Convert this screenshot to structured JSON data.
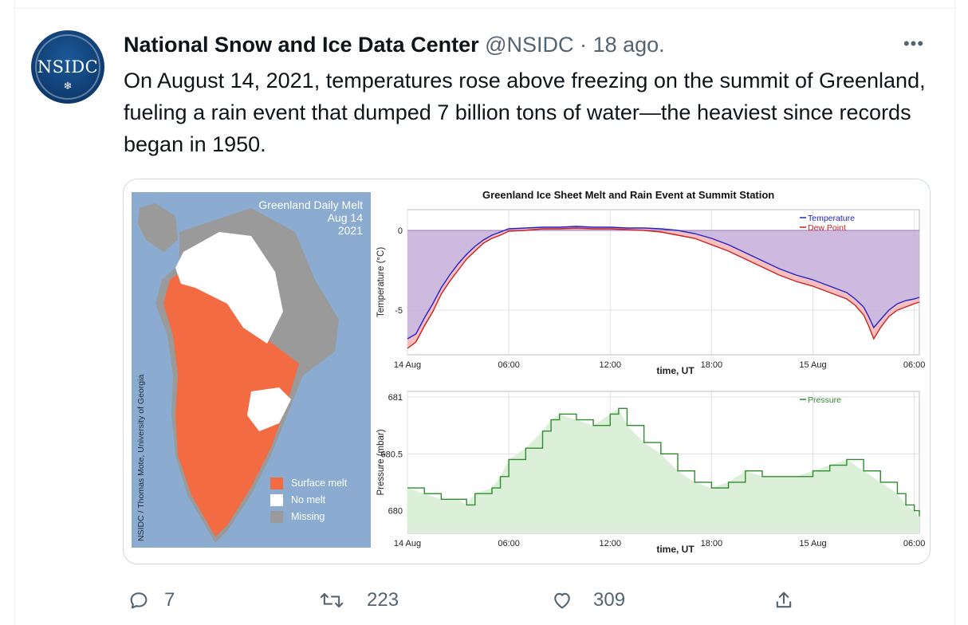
{
  "tweet": {
    "author_name": "National Snow and Ice Data Center",
    "handle": "@NSIDC",
    "separator": "·",
    "date": "18 ago.",
    "avatar_text": "NSIDC",
    "avatar_icon": "snowflake-icon",
    "more_icon": "more-horizontal-icon",
    "text": "On August 14, 2021, temperatures rose above freezing on the summit of Greenland, fueling a rain event that dumped 7 billion tons of water—the heaviest since records began in 1950."
  },
  "map": {
    "title_lines": [
      "Greenland Daily Melt",
      "Aug 14",
      "2021"
    ],
    "credit": "NSIDC / Thomas Mote, University of Georgia",
    "legend": [
      {
        "label": "Surface melt",
        "color": "#f26b43"
      },
      {
        "label": "No melt",
        "color": "#ffffff"
      },
      {
        "label": "Missing",
        "color": "#9a9a9a"
      }
    ],
    "ocean_color": "#8bacd0"
  },
  "actions": {
    "reply": {
      "icon": "reply-icon",
      "count": "7"
    },
    "retweet": {
      "icon": "retweet-icon",
      "count": "223"
    },
    "like": {
      "icon": "heart-icon",
      "count": "309"
    },
    "share": {
      "icon": "share-icon"
    }
  },
  "chart_data": [
    {
      "type": "line",
      "title": "Greenland Ice Sheet Melt and Rain Event at Summit Station",
      "xlabel": "time, UT",
      "ylabel": "Temperature (°C)",
      "x_ticks": [
        "14 Aug",
        "06:00",
        "12:00",
        "18:00",
        "15 Aug",
        "06:00"
      ],
      "x_tick_hours": [
        0,
        6,
        12,
        18,
        24,
        30
      ],
      "xlim": [
        0,
        30.3
      ],
      "ylim": [
        -7.8,
        1.3
      ],
      "y_ticks": [
        0,
        -5
      ],
      "grid": true,
      "legend_position": "top-right",
      "series": [
        {
          "name": "Temperature",
          "color": "#2222cc",
          "x": [
            0,
            0.5,
            1,
            1.5,
            2,
            2.5,
            3,
            3.5,
            4,
            4.5,
            5,
            5.5,
            6,
            7,
            8,
            9,
            10,
            11,
            12,
            13,
            14,
            15,
            16,
            17,
            18,
            19,
            20,
            21,
            22,
            23,
            24,
            25,
            26,
            26.5,
            27,
            27.3,
            27.6,
            28,
            28.5,
            29,
            29.5,
            30,
            30.3
          ],
          "y": [
            -6.8,
            -6.5,
            -5.5,
            -4.6,
            -3.6,
            -2.8,
            -2.1,
            -1.5,
            -1.0,
            -0.6,
            -0.3,
            -0.1,
            0.1,
            0.15,
            0.2,
            0.2,
            0.25,
            0.2,
            0.2,
            0.15,
            0.15,
            0.1,
            0.0,
            -0.2,
            -0.5,
            -0.9,
            -1.4,
            -1.9,
            -2.4,
            -2.8,
            -3.1,
            -3.5,
            -3.9,
            -4.3,
            -4.8,
            -5.4,
            -6.1,
            -5.6,
            -5.0,
            -4.6,
            -4.4,
            -4.3,
            -4.2
          ]
        },
        {
          "name": "Dew Point",
          "color": "#cc2222",
          "x": [
            0,
            0.5,
            1,
            1.5,
            2,
            2.5,
            3,
            3.5,
            4,
            4.5,
            5,
            5.5,
            6,
            7,
            8,
            9,
            10,
            11,
            12,
            13,
            14,
            15,
            16,
            17,
            18,
            19,
            20,
            21,
            22,
            23,
            24,
            25,
            26,
            26.5,
            27,
            27.3,
            27.6,
            28,
            28.5,
            29,
            29.5,
            30,
            30.3
          ],
          "y": [
            -7.4,
            -7.0,
            -6.0,
            -5.1,
            -4.0,
            -3.2,
            -2.5,
            -1.8,
            -1.3,
            -0.8,
            -0.5,
            -0.3,
            -0.05,
            0.0,
            0.1,
            0.1,
            0.15,
            0.1,
            0.1,
            0.05,
            0.0,
            -0.1,
            -0.3,
            -0.5,
            -0.9,
            -1.3,
            -1.8,
            -2.3,
            -2.8,
            -3.2,
            -3.5,
            -3.9,
            -4.3,
            -4.7,
            -5.3,
            -6.0,
            -6.8,
            -6.1,
            -5.4,
            -5.0,
            -4.8,
            -4.6,
            -4.5
          ]
        }
      ]
    },
    {
      "type": "line",
      "xlabel": "time, UT",
      "ylabel": "Pressure (mbar)",
      "x_ticks": [
        "14 Aug",
        "06:00",
        "12:00",
        "18:00",
        "15 Aug",
        "06:00"
      ],
      "x_tick_hours": [
        0,
        6,
        12,
        18,
        24,
        30
      ],
      "xlim": [
        0,
        30.3
      ],
      "ylim": [
        679.8,
        681.05
      ],
      "y_ticks": [
        681,
        680.5,
        680
      ],
      "grid": true,
      "legend_position": "top-right",
      "series": [
        {
          "name": "Pressure",
          "color": "#2e8b2e",
          "x": [
            0,
            1,
            2,
            3,
            3.5,
            4,
            5,
            5.5,
            6,
            7,
            8,
            8.5,
            9,
            10,
            11,
            12,
            12.5,
            13,
            14,
            15,
            16,
            17,
            18,
            19,
            20,
            21,
            22,
            23,
            24,
            25,
            26,
            27,
            28,
            29,
            29.5,
            30,
            30.3
          ],
          "y": [
            680.2,
            680.15,
            680.1,
            680.1,
            680.05,
            680.15,
            680.2,
            680.3,
            680.45,
            680.55,
            680.7,
            680.8,
            680.85,
            680.8,
            680.75,
            680.85,
            680.9,
            680.75,
            680.6,
            680.5,
            680.35,
            680.25,
            680.2,
            680.25,
            680.35,
            680.3,
            680.3,
            680.3,
            680.35,
            680.4,
            680.45,
            680.35,
            680.25,
            680.15,
            680.05,
            680.0,
            679.95
          ]
        }
      ]
    }
  ]
}
